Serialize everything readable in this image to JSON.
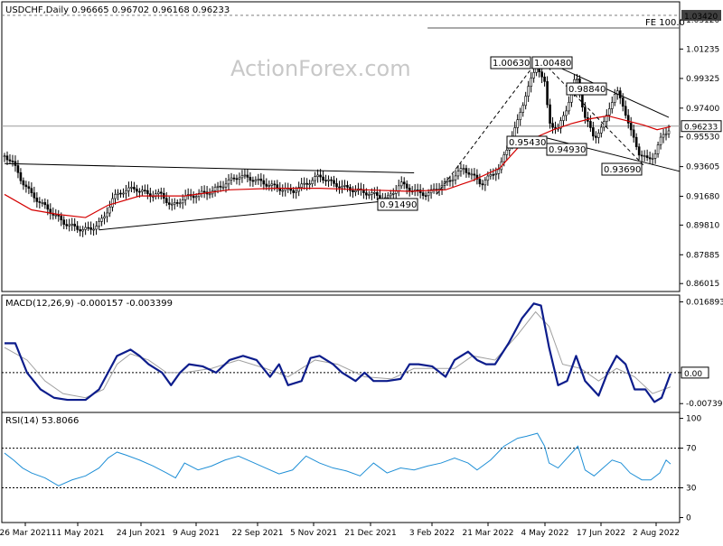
{
  "watermark": "ActionForex.com",
  "chart_data": [
    {
      "type": "candlestick",
      "title": "USDCHF,Daily  0.96665 0.96702 0.96168 0.96233",
      "ylim": [
        0.855,
        1.043
      ],
      "yticks": [
        "1.03120",
        "1.01235",
        "0.99325",
        "0.97400",
        "0.95530",
        "0.93605",
        "0.91680",
        "0.89810",
        "0.87885",
        "0.86015"
      ],
      "last_price": "0.96233",
      "fe_level": "1.03420",
      "fe_label": "FE 100.0",
      "xticks": [
        "26 Mar 2021",
        "11 May 2021",
        "24 Jun 2021",
        "9 Aug 2021",
        "22 Sep 2021",
        "5 Nov 2021",
        "21 Dec 2021",
        "3 Feb 2022",
        "21 Mar 2022",
        "4 May 2022",
        "17 Jun 2022",
        "2 Aug 2022"
      ],
      "annotations": [
        {
          "text": "1.00630",
          "value": 1.0063
        },
        {
          "text": "1.00480",
          "value": 1.0048
        },
        {
          "text": "0.98840",
          "value": 0.9884
        },
        {
          "text": "0.95430",
          "value": 0.9543
        },
        {
          "text": "0.94930",
          "value": 0.9493
        },
        {
          "text": "0.93690",
          "value": 0.9369
        },
        {
          "text": "0.91490",
          "value": 0.9149
        }
      ],
      "close_path": [
        [
          0,
          0.943
        ],
        [
          8,
          0.94
        ],
        [
          18,
          0.928
        ],
        [
          30,
          0.918
        ],
        [
          45,
          0.91
        ],
        [
          55,
          0.905
        ],
        [
          65,
          0.9
        ],
        [
          80,
          0.896
        ],
        [
          95,
          0.895
        ],
        [
          110,
          0.902
        ],
        [
          120,
          0.915
        ],
        [
          130,
          0.92
        ],
        [
          145,
          0.922
        ],
        [
          160,
          0.918
        ],
        [
          175,
          0.918
        ],
        [
          185,
          0.91
        ],
        [
          200,
          0.916
        ],
        [
          215,
          0.918
        ],
        [
          230,
          0.92
        ],
        [
          245,
          0.925
        ],
        [
          260,
          0.93
        ],
        [
          275,
          0.928
        ],
        [
          290,
          0.925
        ],
        [
          305,
          0.922
        ],
        [
          320,
          0.92
        ],
        [
          335,
          0.925
        ],
        [
          350,
          0.93
        ],
        [
          365,
          0.925
        ],
        [
          380,
          0.922
        ],
        [
          395,
          0.92
        ],
        [
          410,
          0.918
        ],
        [
          425,
          0.915
        ],
        [
          440,
          0.925
        ],
        [
          455,
          0.92
        ],
        [
          470,
          0.918
        ],
        [
          480,
          0.922
        ],
        [
          490,
          0.925
        ],
        [
          500,
          0.93
        ],
        [
          510,
          0.935
        ],
        [
          520,
          0.93
        ],
        [
          530,
          0.925
        ],
        [
          540,
          0.93
        ],
        [
          550,
          0.935
        ],
        [
          560,
          0.95
        ],
        [
          570,
          0.965
        ],
        [
          580,
          0.985
        ],
        [
          592,
          1.002
        ],
        [
          600,
          0.99
        ],
        [
          605,
          0.965
        ],
        [
          615,
          0.96
        ],
        [
          625,
          0.975
        ],
        [
          635,
          0.995
        ],
        [
          645,
          0.968
        ],
        [
          655,
          0.955
        ],
        [
          665,
          0.962
        ],
        [
          672,
          0.975
        ],
        [
          680,
          0.985
        ],
        [
          688,
          0.975
        ],
        [
          695,
          0.96
        ],
        [
          705,
          0.945
        ],
        [
          715,
          0.94
        ],
        [
          722,
          0.944
        ],
        [
          730,
          0.955
        ],
        [
          740,
          0.962
        ]
      ],
      "ma_path": [
        [
          0,
          0.918
        ],
        [
          30,
          0.908
        ],
        [
          60,
          0.905
        ],
        [
          90,
          0.903
        ],
        [
          115,
          0.911
        ],
        [
          150,
          0.917
        ],
        [
          200,
          0.917
        ],
        [
          250,
          0.921
        ],
        [
          300,
          0.922
        ],
        [
          350,
          0.922
        ],
        [
          400,
          0.921
        ],
        [
          450,
          0.92
        ],
        [
          490,
          0.921
        ],
        [
          520,
          0.927
        ],
        [
          550,
          0.935
        ],
        [
          570,
          0.948
        ],
        [
          590,
          0.955
        ],
        [
          610,
          0.96
        ],
        [
          630,
          0.964
        ],
        [
          650,
          0.967
        ],
        [
          670,
          0.969
        ],
        [
          690,
          0.966
        ],
        [
          710,
          0.963
        ],
        [
          725,
          0.96
        ],
        [
          740,
          0.962
        ]
      ],
      "trendlines": [
        {
          "from": [
            0,
            0.938
          ],
          "to": [
            455,
            0.932
          ]
        },
        {
          "from": [
            105,
            0.895
          ],
          "to": [
            445,
            0.915
          ]
        },
        {
          "from": [
            480,
            0.918
          ],
          "to": [
            594,
            1.0063
          ]
        },
        {
          "from": [
            594,
            1.0063
          ],
          "to": [
            738,
            0.968
          ]
        },
        {
          "from": [
            600,
            0.955
          ],
          "to": [
            750,
            0.933
          ]
        },
        {
          "from": [
            594,
            1.0063
          ],
          "to": [
            710,
            0.937
          ]
        }
      ]
    },
    {
      "type": "line",
      "title": "MACD(12,26,9) -0.000157 -0.003399",
      "ylim": [
        -0.0095,
        0.0185
      ],
      "yticks": [
        "0.016893",
        "0.00",
        "-0.007393"
      ],
      "zero_label": "0.00",
      "macd": [
        [
          0,
          0.007
        ],
        [
          12,
          0.007
        ],
        [
          25,
          0.0
        ],
        [
          40,
          -0.004
        ],
        [
          55,
          -0.006
        ],
        [
          70,
          -0.0065
        ],
        [
          90,
          -0.0065
        ],
        [
          105,
          -0.004
        ],
        [
          115,
          0.0
        ],
        [
          125,
          0.004
        ],
        [
          140,
          0.0055
        ],
        [
          150,
          0.004
        ],
        [
          160,
          0.002
        ],
        [
          175,
          0.0
        ],
        [
          185,
          -0.003
        ],
        [
          195,
          0.0
        ],
        [
          205,
          0.002
        ],
        [
          220,
          0.0015
        ],
        [
          235,
          0.0
        ],
        [
          250,
          0.003
        ],
        [
          265,
          0.004
        ],
        [
          280,
          0.003
        ],
        [
          295,
          -0.001
        ],
        [
          305,
          0.002
        ],
        [
          315,
          -0.003
        ],
        [
          330,
          -0.002
        ],
        [
          340,
          0.0035
        ],
        [
          350,
          0.004
        ],
        [
          365,
          0.002
        ],
        [
          375,
          0.0
        ],
        [
          390,
          -0.002
        ],
        [
          400,
          0.0
        ],
        [
          410,
          -0.002
        ],
        [
          425,
          -0.002
        ],
        [
          440,
          -0.0015
        ],
        [
          450,
          0.002
        ],
        [
          460,
          0.002
        ],
        [
          475,
          0.0015
        ],
        [
          490,
          -0.001
        ],
        [
          500,
          0.003
        ],
        [
          515,
          0.005
        ],
        [
          525,
          0.003
        ],
        [
          535,
          0.002
        ],
        [
          545,
          0.002
        ],
        [
          560,
          0.007
        ],
        [
          575,
          0.013
        ],
        [
          588,
          0.0165
        ],
        [
          596,
          0.016
        ],
        [
          605,
          0.006
        ],
        [
          615,
          -0.003
        ],
        [
          625,
          -0.002
        ],
        [
          635,
          0.004
        ],
        [
          645,
          -0.002
        ],
        [
          660,
          -0.0055
        ],
        [
          670,
          0.0
        ],
        [
          680,
          0.004
        ],
        [
          690,
          0.002
        ],
        [
          700,
          -0.004
        ],
        [
          712,
          -0.004
        ],
        [
          722,
          -0.007
        ],
        [
          730,
          -0.006
        ],
        [
          740,
          -0.0002
        ]
      ],
      "signal": [
        [
          0,
          0.006
        ],
        [
          25,
          0.003
        ],
        [
          45,
          -0.002
        ],
        [
          65,
          -0.005
        ],
        [
          90,
          -0.006
        ],
        [
          110,
          -0.004
        ],
        [
          125,
          0.002
        ],
        [
          140,
          0.0045
        ],
        [
          160,
          0.003
        ],
        [
          180,
          0.0
        ],
        [
          200,
          0.0
        ],
        [
          230,
          0.001
        ],
        [
          260,
          0.003
        ],
        [
          290,
          0.001
        ],
        [
          315,
          -0.001
        ],
        [
          345,
          0.003
        ],
        [
          370,
          0.002
        ],
        [
          400,
          -0.001
        ],
        [
          430,
          -0.0015
        ],
        [
          455,
          0.001
        ],
        [
          480,
          0.001
        ],
        [
          500,
          0.001
        ],
        [
          520,
          0.004
        ],
        [
          545,
          0.003
        ],
        [
          570,
          0.009
        ],
        [
          590,
          0.0145
        ],
        [
          605,
          0.011
        ],
        [
          620,
          0.002
        ],
        [
          640,
          0.001
        ],
        [
          660,
          -0.002
        ],
        [
          680,
          0.001
        ],
        [
          700,
          -0.001
        ],
        [
          720,
          -0.005
        ],
        [
          740,
          -0.0034
        ]
      ]
    },
    {
      "type": "line",
      "title": "RSI(14) 53.8066",
      "ylim": [
        -5,
        106
      ],
      "yticks": [
        "100",
        "70",
        "30",
        "0"
      ],
      "levels": [
        70,
        30
      ],
      "rsi": [
        [
          0,
          65
        ],
        [
          10,
          58
        ],
        [
          20,
          50
        ],
        [
          30,
          45
        ],
        [
          45,
          40
        ],
        [
          60,
          32
        ],
        [
          75,
          38
        ],
        [
          90,
          42
        ],
        [
          105,
          50
        ],
        [
          115,
          60
        ],
        [
          125,
          66
        ],
        [
          135,
          63
        ],
        [
          150,
          58
        ],
        [
          165,
          52
        ],
        [
          180,
          45
        ],
        [
          190,
          40
        ],
        [
          200,
          55
        ],
        [
          215,
          48
        ],
        [
          230,
          52
        ],
        [
          245,
          58
        ],
        [
          260,
          62
        ],
        [
          275,
          56
        ],
        [
          290,
          50
        ],
        [
          305,
          44
        ],
        [
          320,
          48
        ],
        [
          335,
          62
        ],
        [
          350,
          55
        ],
        [
          365,
          50
        ],
        [
          380,
          47
        ],
        [
          395,
          42
        ],
        [
          410,
          55
        ],
        [
          425,
          45
        ],
        [
          440,
          50
        ],
        [
          455,
          48
        ],
        [
          470,
          52
        ],
        [
          485,
          55
        ],
        [
          500,
          60
        ],
        [
          515,
          55
        ],
        [
          525,
          48
        ],
        [
          540,
          58
        ],
        [
          555,
          72
        ],
        [
          570,
          80
        ],
        [
          580,
          82
        ],
        [
          592,
          85
        ],
        [
          600,
          72
        ],
        [
          605,
          55
        ],
        [
          615,
          50
        ],
        [
          625,
          60
        ],
        [
          637,
          72
        ],
        [
          645,
          48
        ],
        [
          655,
          42
        ],
        [
          665,
          50
        ],
        [
          675,
          58
        ],
        [
          685,
          55
        ],
        [
          695,
          45
        ],
        [
          708,
          38
        ],
        [
          718,
          38
        ],
        [
          728,
          45
        ],
        [
          735,
          58
        ],
        [
          740,
          54
        ]
      ]
    }
  ]
}
